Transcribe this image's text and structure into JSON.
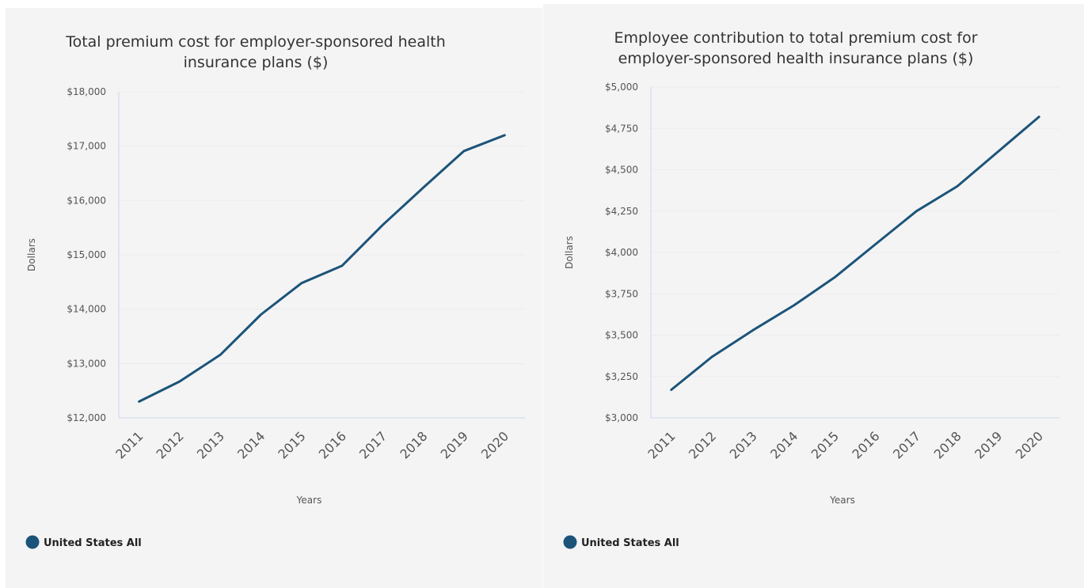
{
  "chart_data": [
    {
      "type": "line",
      "title_lines": [
        "Total premium cost for employer-sponsored health",
        "insurance plans ($)"
      ],
      "xlabel": "Years",
      "ylabel": "Dollars",
      "ylim": [
        12000,
        18000
      ],
      "y_ticks": [
        12000,
        13000,
        14000,
        15000,
        16000,
        17000,
        18000
      ],
      "y_tick_labels": [
        "$12,000",
        "$13,000",
        "$14,000",
        "$15,000",
        "$16,000",
        "$17,000",
        "$18,000"
      ],
      "categories": [
        "2011",
        "2012",
        "2013",
        "2014",
        "2015",
        "2016",
        "2017",
        "2018",
        "2019",
        "2020"
      ],
      "series": [
        {
          "name": "United States All",
          "color": "#1c5479",
          "values": [
            12300,
            12670,
            13160,
            13900,
            14480,
            14800,
            15550,
            16240,
            16910,
            17200
          ]
        }
      ],
      "legend": "bottom-left"
    },
    {
      "type": "line",
      "title_lines": [
        "Employee contribution to total premium cost for",
        "employer-sponsored health insurance plans ($)"
      ],
      "xlabel": "Years",
      "ylabel": "Dollars",
      "ylim": [
        3000,
        5000
      ],
      "y_ticks": [
        3000,
        3250,
        3500,
        3750,
        4000,
        4250,
        4500,
        4750,
        5000
      ],
      "y_tick_labels": [
        "$3,000",
        "$3,250",
        "$3,500",
        "$3,750",
        "$4,000",
        "$4,250",
        "$4,500",
        "$4,750",
        "$5,000"
      ],
      "categories": [
        "2011",
        "2012",
        "2013",
        "2014",
        "2015",
        "2016",
        "2017",
        "2018",
        "2019",
        "2020"
      ],
      "series": [
        {
          "name": "United States All",
          "color": "#1c5479",
          "values": [
            3170,
            3370,
            3530,
            3680,
            3850,
            4050,
            4250,
            4400,
            4610,
            4820
          ]
        }
      ],
      "legend": "bottom-left"
    }
  ]
}
